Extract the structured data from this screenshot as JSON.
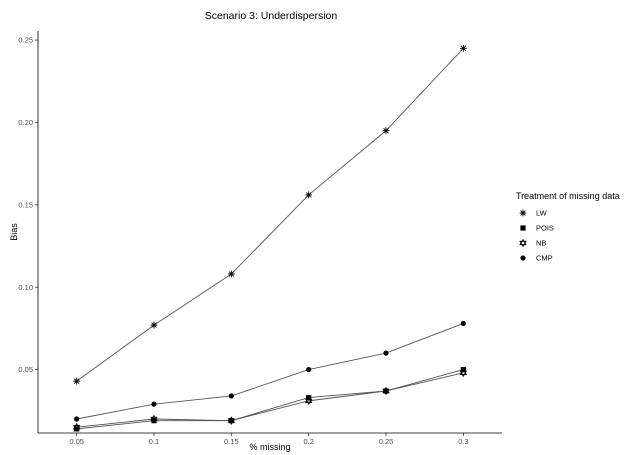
{
  "chart_data": {
    "type": "line",
    "title": "Scenario 3: Underdispersion",
    "xlabel": "% missing",
    "ylabel": "Bias",
    "x": [
      0.05,
      0.1,
      0.15,
      0.2,
      0.25,
      0.3
    ],
    "x_tick_labels": [
      "0.05",
      "0.1",
      "0.15",
      "0.2",
      "0.25",
      "0.3"
    ],
    "y_ticks": [
      0.05,
      0.1,
      0.15,
      0.2,
      0.25
    ],
    "y_tick_labels": [
      "0.05",
      "0.10",
      "0.15",
      "0.20",
      "0.25"
    ],
    "xlim": [
      0.025,
      0.325
    ],
    "ylim": [
      0.0115,
      0.2555
    ],
    "grid": false,
    "legend_position": "right",
    "legend_title": "Treatment of missing data",
    "series": [
      {
        "name": "LW",
        "marker": "asterisk",
        "values": [
          0.043,
          0.077,
          0.108,
          0.156,
          0.195,
          0.245
        ]
      },
      {
        "name": "POIS",
        "marker": "square",
        "values": [
          0.014,
          0.019,
          0.019,
          0.033,
          0.037,
          0.05
        ]
      },
      {
        "name": "NB",
        "marker": "star-of-david",
        "values": [
          0.015,
          0.02,
          0.019,
          0.031,
          0.037,
          0.048
        ]
      },
      {
        "name": "CMP",
        "marker": "circle",
        "values": [
          0.02,
          0.029,
          0.034,
          0.05,
          0.06,
          0.078
        ]
      }
    ]
  }
}
